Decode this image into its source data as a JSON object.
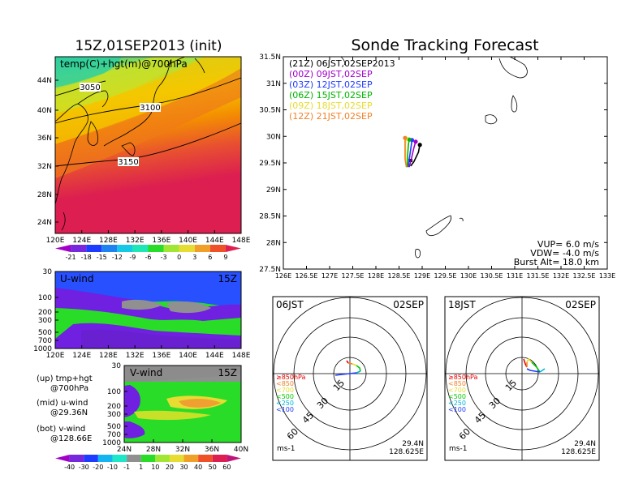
{
  "left_panel": {
    "title": "15Z,01SEP2013 (init)",
    "label": "temp(C)+hgt(m)@700hPa",
    "contours": [
      "3050",
      "3100",
      "3150"
    ],
    "lat_ticks": [
      "44N",
      "40N",
      "36N",
      "32N",
      "28N",
      "24N"
    ],
    "lon_ticks": [
      "120E",
      "124E",
      "128E",
      "132E",
      "136E",
      "140E",
      "144E",
      "148E"
    ],
    "temp_colorbar": [
      "-21",
      "-18",
      "-15",
      "-12",
      "-9",
      "-6",
      "-3",
      "0",
      "3",
      "6",
      "9"
    ]
  },
  "uwind_panel": {
    "label": "U-wind",
    "time": "15Z",
    "p_ticks": [
      "30",
      "100",
      "200",
      "300",
      "500",
      "700",
      "1000"
    ],
    "lon_ticks": [
      "120E",
      "124E",
      "128E",
      "132E",
      "136E",
      "140E",
      "144E",
      "148E"
    ]
  },
  "vwind_panel": {
    "label": "V-wind",
    "time": "15Z",
    "p_ticks": [
      "30",
      "100",
      "200",
      "300",
      "500",
      "700",
      "1000"
    ],
    "lat_ticks": [
      "24N",
      "28N",
      "32N",
      "36N",
      "40N"
    ]
  },
  "descriptions": [
    {
      "a": "(up) tmp+hgt",
      "b": "@700hPa"
    },
    {
      "a": "(mid) u-wind",
      "b": "@29.36N"
    },
    {
      "a": "(bot) v-wind",
      "b": "@128.66E"
    }
  ],
  "wind_colorbar": [
    "-40",
    "-30",
    "-20",
    "-10",
    "-1",
    "1",
    "10",
    "20",
    "30",
    "40",
    "50",
    "60"
  ],
  "main": {
    "title": "Sonde Tracking Forecast",
    "lat_ticks": [
      "31.5N",
      "31N",
      "30.5N",
      "30N",
      "29.5N",
      "29N",
      "28.5N",
      "28N",
      "27.5N"
    ],
    "lon_ticks": [
      "126E",
      "126.5E",
      "127E",
      "127.5E",
      "128E",
      "128.5E",
      "129E",
      "129.5E",
      "130E",
      "130.5E",
      "131E",
      "131.5E",
      "132E",
      "132.5E",
      "133E"
    ],
    "legend": [
      {
        "label": "(21Z)  06JST,02SEP2013",
        "color": "#000000"
      },
      {
        "label": "(00Z)  09JST,02SEP",
        "color": "#a000c8"
      },
      {
        "label": "(03Z)  12JST,02SEP",
        "color": "#1e3cff"
      },
      {
        "label": "(06Z)  15JST,02SEP",
        "color": "#00b400"
      },
      {
        "label": "(09Z)  18JST,02SEP",
        "color": "#e6dc32"
      },
      {
        "label": "(12Z)  21JST,02SEP",
        "color": "#f08228"
      }
    ],
    "params": [
      "VUP=  6.0  m/s",
      "VDW= -4.0  m/s",
      "Burst Alt= 18.0  km"
    ]
  },
  "polar": [
    {
      "time": "06JST",
      "date": "02SEP",
      "rings": [
        "15",
        "30",
        "45",
        "60"
      ],
      "unit": "ms-1",
      "lat": "29.4N",
      "lon": "128.625E"
    },
    {
      "time": "18JST",
      "date": "02SEP",
      "rings": [
        "15",
        "30",
        "45",
        "60"
      ],
      "unit": "ms-1",
      "lat": "29.4N",
      "lon": "128.625E"
    }
  ],
  "polar_legend": [
    {
      "label": "≥850hPa",
      "color": "#e60000"
    },
    {
      "label": "<850",
      "color": "#f08228"
    },
    {
      "label": "<700",
      "color": "#e6dc32"
    },
    {
      "label": "<500",
      "color": "#00c800"
    },
    {
      "label": "<250",
      "color": "#00b4dc"
    },
    {
      "label": "<100",
      "color": "#1e3cff"
    }
  ],
  "chart_data": [
    {
      "type": "line",
      "title": "Sonde Tracking Forecast",
      "xlim": [
        126,
        133
      ],
      "ylim": [
        27.5,
        31.5
      ],
      "series": [
        {
          "name": "(21Z) 06JST,02SEP2013",
          "x": [
            128.75,
            128.82,
            128.92,
            128.95
          ],
          "y": [
            29.44,
            29.52,
            29.7,
            29.84
          ]
        },
        {
          "name": "(00Z) 09JST,02SEP",
          "x": [
            128.72,
            128.76,
            128.82,
            128.86
          ],
          "y": [
            29.42,
            29.55,
            29.78,
            29.9
          ]
        },
        {
          "name": "(03Z) 12JST,02SEP",
          "x": [
            128.7,
            128.72,
            128.76,
            128.78
          ],
          "y": [
            29.42,
            29.56,
            29.8,
            29.93
          ]
        },
        {
          "name": "(06Z) 15JST,02SEP",
          "x": [
            128.68,
            128.68,
            128.7,
            128.72
          ],
          "y": [
            29.42,
            29.58,
            29.82,
            29.94
          ]
        },
        {
          "name": "(09Z) 18JST,02SEP",
          "x": [
            128.66,
            128.64,
            128.64,
            128.65
          ],
          "y": [
            29.42,
            29.58,
            29.84,
            29.96
          ]
        },
        {
          "name": "(12Z) 21JST,02SEP",
          "x": [
            128.66,
            128.63,
            128.63,
            128.63
          ],
          "y": [
            29.42,
            29.58,
            29.84,
            29.97
          ]
        }
      ]
    }
  ]
}
